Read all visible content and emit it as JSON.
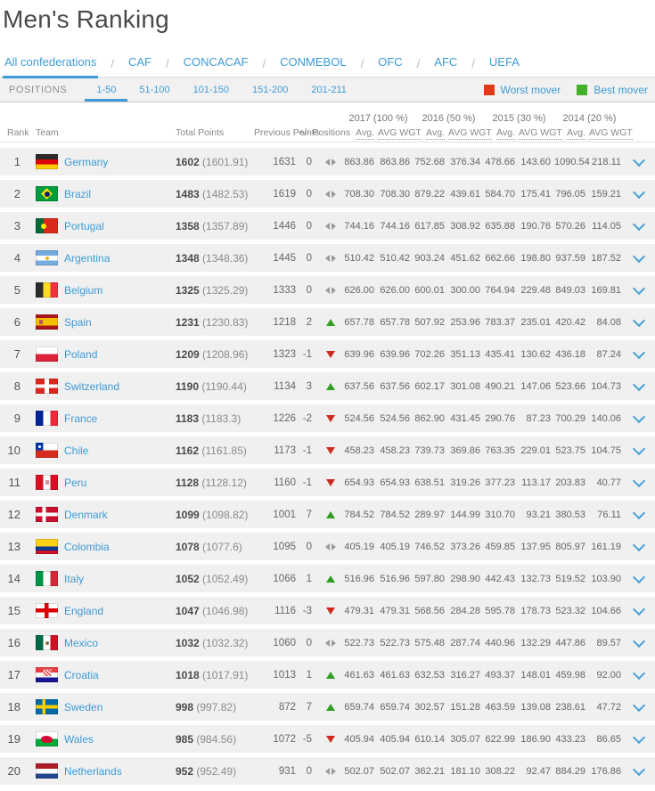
{
  "page": {
    "title": "Men's Ranking"
  },
  "confederations": {
    "separator": "/",
    "active": "All confederations",
    "tabs": [
      "All confederations",
      "CAF",
      "CONCACAF",
      "CONMEBOL",
      "OFC",
      "AFC",
      "UEFA"
    ]
  },
  "positions": {
    "label": "POSITIONS",
    "active": "1-50",
    "tabs": [
      "1-50",
      "51-100",
      "101-150",
      "151-200",
      "201-211"
    ]
  },
  "legend": {
    "worst": {
      "label": "Worst mover",
      "color": "#dd3a15"
    },
    "best": {
      "label": "Best mover",
      "color": "#43b12a"
    }
  },
  "colors": {
    "accent_blue": "#3e9bd6",
    "row_bg": "#f0f0f0"
  },
  "table": {
    "columns": [
      "Rank",
      "Team",
      "Total Points",
      "Previous Points",
      "+/- Positions"
    ],
    "year_groups": [
      "2017 (100 %)",
      "2016 (50 %)",
      "2015 (30 %)",
      "2014 (20 %)"
    ],
    "sub_columns": [
      "Avg.",
      "AVG WGT"
    ],
    "expand_icon": "chevron-down",
    "rows": [
      {
        "rank": "1",
        "team": "Germany",
        "flag": "de",
        "total": "1602",
        "total_detail": "(1601.91)",
        "previous": "1631",
        "change": "0",
        "trend": "same",
        "values": [
          "863.86",
          "863.86",
          "752.68",
          "376.34",
          "478.66",
          "143.60",
          "1090.54",
          "218.11"
        ]
      },
      {
        "rank": "2",
        "team": "Brazil",
        "flag": "br",
        "total": "1483",
        "total_detail": "(1482.53)",
        "previous": "1619",
        "change": "0",
        "trend": "same",
        "values": [
          "708.30",
          "708.30",
          "879.22",
          "439.61",
          "584.70",
          "175.41",
          "796.05",
          "159.21"
        ]
      },
      {
        "rank": "3",
        "team": "Portugal",
        "flag": "pt",
        "total": "1358",
        "total_detail": "(1357.89)",
        "previous": "1446",
        "change": "0",
        "trend": "same",
        "values": [
          "744.16",
          "744.16",
          "617.85",
          "308.92",
          "635.88",
          "190.76",
          "570.26",
          "114.05"
        ]
      },
      {
        "rank": "4",
        "team": "Argentina",
        "flag": "ar",
        "total": "1348",
        "total_detail": "(1348.36)",
        "previous": "1445",
        "change": "0",
        "trend": "same",
        "values": [
          "510.42",
          "510.42",
          "903.24",
          "451.62",
          "662.66",
          "198.80",
          "937.59",
          "187.52"
        ]
      },
      {
        "rank": "5",
        "team": "Belgium",
        "flag": "be",
        "total": "1325",
        "total_detail": "(1325.29)",
        "previous": "1333",
        "change": "0",
        "trend": "same",
        "values": [
          "626.00",
          "626.00",
          "600.01",
          "300.00",
          "764.94",
          "229.48",
          "849.03",
          "169.81"
        ]
      },
      {
        "rank": "6",
        "team": "Spain",
        "flag": "es",
        "total": "1231",
        "total_detail": "(1230.83)",
        "previous": "1218",
        "change": "2",
        "trend": "up",
        "values": [
          "657.78",
          "657.78",
          "507.92",
          "253.96",
          "783.37",
          "235.01",
          "420.42",
          "84.08"
        ]
      },
      {
        "rank": "7",
        "team": "Poland",
        "flag": "pl",
        "total": "1209",
        "total_detail": "(1208.96)",
        "previous": "1323",
        "change": "-1",
        "trend": "down",
        "values": [
          "639.96",
          "639.96",
          "702.26",
          "351.13",
          "435.41",
          "130.62",
          "436.18",
          "87.24"
        ]
      },
      {
        "rank": "8",
        "team": "Switzerland",
        "flag": "ch",
        "total": "1190",
        "total_detail": "(1190.44)",
        "previous": "1134",
        "change": "3",
        "trend": "up",
        "values": [
          "637.56",
          "637.56",
          "602.17",
          "301.08",
          "490.21",
          "147.06",
          "523.66",
          "104.73"
        ]
      },
      {
        "rank": "9",
        "team": "France",
        "flag": "fr",
        "total": "1183",
        "total_detail": "(1183.3)",
        "previous": "1226",
        "change": "-2",
        "trend": "down",
        "values": [
          "524.56",
          "524.56",
          "862.90",
          "431.45",
          "290.76",
          "87.23",
          "700.29",
          "140.06"
        ]
      },
      {
        "rank": "10",
        "team": "Chile",
        "flag": "cl",
        "total": "1162",
        "total_detail": "(1161.85)",
        "previous": "1173",
        "change": "-1",
        "trend": "down",
        "values": [
          "458.23",
          "458.23",
          "739.73",
          "369.86",
          "763.35",
          "229.01",
          "523.75",
          "104.75"
        ]
      },
      {
        "rank": "11",
        "team": "Peru",
        "flag": "pe",
        "total": "1128",
        "total_detail": "(1128.12)",
        "previous": "1160",
        "change": "-1",
        "trend": "down",
        "values": [
          "654.93",
          "654.93",
          "638.51",
          "319.26",
          "377.23",
          "113.17",
          "203.83",
          "40.77"
        ]
      },
      {
        "rank": "12",
        "team": "Denmark",
        "flag": "dk",
        "total": "1099",
        "total_detail": "(1098.82)",
        "previous": "1001",
        "change": "7",
        "trend": "up",
        "values": [
          "784.52",
          "784.52",
          "289.97",
          "144.99",
          "310.70",
          "93.21",
          "380.53",
          "76.11"
        ]
      },
      {
        "rank": "13",
        "team": "Colombia",
        "flag": "co",
        "total": "1078",
        "total_detail": "(1077.6)",
        "previous": "1095",
        "change": "0",
        "trend": "same",
        "values": [
          "405.19",
          "405.19",
          "746.52",
          "373.26",
          "459.85",
          "137.95",
          "805.97",
          "161.19"
        ]
      },
      {
        "rank": "14",
        "team": "Italy",
        "flag": "it",
        "total": "1052",
        "total_detail": "(1052.49)",
        "previous": "1066",
        "change": "1",
        "trend": "up",
        "values": [
          "516.96",
          "516.96",
          "597.80",
          "298.90",
          "442.43",
          "132.73",
          "519.52",
          "103.90"
        ]
      },
      {
        "rank": "15",
        "team": "England",
        "flag": "gb-eng",
        "total": "1047",
        "total_detail": "(1046.98)",
        "previous": "1116",
        "change": "-3",
        "trend": "down",
        "values": [
          "479.31",
          "479.31",
          "568.56",
          "284.28",
          "595.78",
          "178.73",
          "523.32",
          "104.66"
        ]
      },
      {
        "rank": "16",
        "team": "Mexico",
        "flag": "mx",
        "total": "1032",
        "total_detail": "(1032.32)",
        "previous": "1060",
        "change": "0",
        "trend": "same",
        "values": [
          "522.73",
          "522.73",
          "575.48",
          "287.74",
          "440.96",
          "132.29",
          "447.86",
          "89.57"
        ]
      },
      {
        "rank": "17",
        "team": "Croatia",
        "flag": "hr",
        "total": "1018",
        "total_detail": "(1017.91)",
        "previous": "1013",
        "change": "1",
        "trend": "up",
        "values": [
          "461.63",
          "461.63",
          "632.53",
          "316.27",
          "493.37",
          "148.01",
          "459.98",
          "92.00"
        ]
      },
      {
        "rank": "18",
        "team": "Sweden",
        "flag": "se",
        "total": "998",
        "total_detail": "(997.82)",
        "previous": "872",
        "change": "7",
        "trend": "up",
        "values": [
          "659.74",
          "659.74",
          "302.57",
          "151.28",
          "463.59",
          "139.08",
          "238.61",
          "47.72"
        ]
      },
      {
        "rank": "19",
        "team": "Wales",
        "flag": "gb-wls",
        "total": "985",
        "total_detail": "(984.56)",
        "previous": "1072",
        "change": "-5",
        "trend": "down",
        "values": [
          "405.94",
          "405.94",
          "610.14",
          "305.07",
          "622.99",
          "186.90",
          "433.23",
          "86.65"
        ]
      },
      {
        "rank": "20",
        "team": "Netherlands",
        "flag": "nl",
        "total": "952",
        "total_detail": "(952.49)",
        "previous": "931",
        "change": "0",
        "trend": "same",
        "values": [
          "502.07",
          "502.07",
          "362.21",
          "181.10",
          "308.22",
          "92.47",
          "884.29",
          "176.86"
        ]
      }
    ]
  }
}
